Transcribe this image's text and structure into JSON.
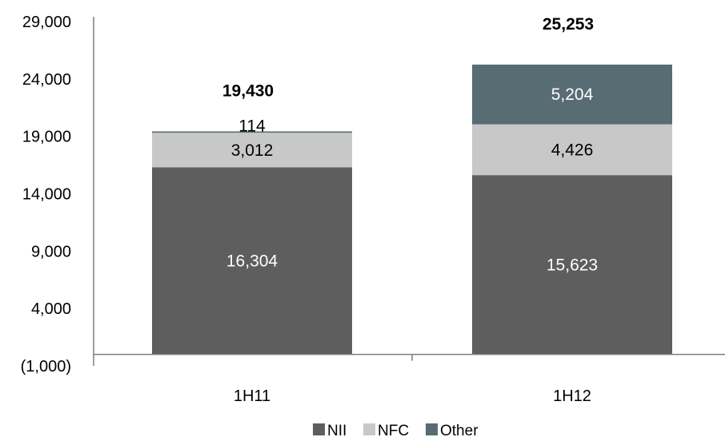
{
  "chart_data": {
    "type": "bar",
    "stacked": true,
    "categories": [
      "1H11",
      "1H12"
    ],
    "series": [
      {
        "name": "NII",
        "values": [
          16304,
          15623
        ],
        "color": "#5e5e5e",
        "label_color": "#ffffff",
        "labels": [
          "16,304",
          "15,623"
        ]
      },
      {
        "name": "NFC",
        "values": [
          3012,
          4426
        ],
        "color": "#c8c8c8",
        "label_color": "#000000",
        "labels": [
          "3,012",
          "4,426"
        ]
      },
      {
        "name": "Other",
        "values": [
          114,
          5204
        ],
        "color": "#586c74",
        "label_color": "#ffffff",
        "labels": [
          "114",
          "5,204"
        ]
      }
    ],
    "totals": [
      "19,430",
      "25,253"
    ],
    "yticks": [
      29000,
      24000,
      19000,
      14000,
      9000,
      4000,
      -1000
    ],
    "ytick_labels": [
      "29,000",
      "24,000",
      "19,000",
      "14,000",
      "9,000",
      "4,000",
      "(1,000)"
    ],
    "ylim": [
      -1000,
      29000
    ],
    "grid": false,
    "legend_position": "bottom"
  }
}
